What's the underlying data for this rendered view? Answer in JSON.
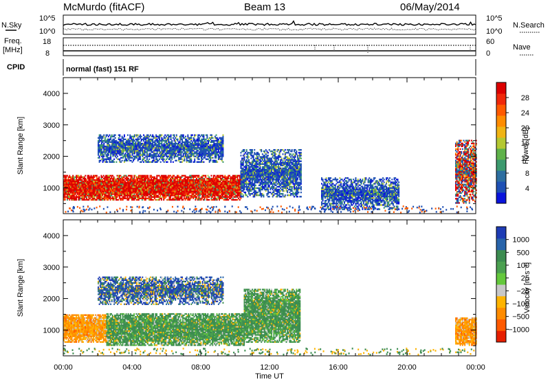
{
  "header": {
    "station": "McMurdo (fitACF)",
    "beam": "Beam 13",
    "date": "06/May/2014"
  },
  "noise_panel": {
    "left_label": "N.Sky",
    "right_label": "N.Search",
    "left_top": "10^5",
    "left_bottom": "10^0",
    "right_top": "10^5",
    "right_bottom": "10^0"
  },
  "freq_panel": {
    "left_label_1": "Freq.",
    "left_label_2": "[MHz]",
    "left_top": "18",
    "left_bottom": "8",
    "right_top": "60",
    "right_bottom": "0",
    "right_label": "Nave"
  },
  "cpid_panel": {
    "label": "CPID",
    "mode_text": "normal (fast) 151 RF"
  },
  "x_axis": {
    "title": "Time UT",
    "ticks": [
      "00:00",
      "04:00",
      "08:00",
      "12:00",
      "16:00",
      "20:00",
      "00:00"
    ]
  },
  "chart_data": [
    {
      "type": "heatmap",
      "parameter": "Power",
      "ylabel": "Slant Range [km]",
      "yticks": [
        "1000",
        "2000",
        "3000",
        "4000"
      ],
      "ylim": [
        180,
        4500
      ],
      "xlim_hours": [
        0,
        24
      ],
      "colorbar": {
        "title": "Power [dB]",
        "ticks": [
          "4",
          "8",
          "12",
          "16",
          "20",
          "24",
          "28"
        ],
        "colors": [
          "#0a14dc",
          "#1e50b4",
          "#2d6ea0",
          "#3c9a6e",
          "#5fb24a",
          "#b4c832",
          "#f0b414",
          "#ff8c00",
          "#ff5a00",
          "#f0280a",
          "#dc0000"
        ]
      },
      "echo_regions": [
        {
          "t_start": 0.0,
          "t_end": 10.3,
          "range_min": 600,
          "range_max": 1400,
          "level": "high"
        },
        {
          "t_start": 10.3,
          "t_end": 13.8,
          "range_min": 700,
          "range_max": 2200,
          "level": "low"
        },
        {
          "t_start": 2.0,
          "t_end": 9.3,
          "range_min": 1800,
          "range_max": 2700,
          "level": "low"
        },
        {
          "t_start": 15.0,
          "t_end": 19.5,
          "range_min": 300,
          "range_max": 1300,
          "level": "low"
        },
        {
          "t_start": 22.8,
          "t_end": 24.0,
          "range_min": 500,
          "range_max": 2500,
          "level": "medium"
        }
      ]
    },
    {
      "type": "heatmap",
      "parameter": "Velocity",
      "ylabel": "Slant Range [km]",
      "yticks": [
        "1000",
        "2000",
        "3000",
        "4000"
      ],
      "ylim": [
        180,
        4500
      ],
      "xlim_hours": [
        0,
        24
      ],
      "colorbar": {
        "title": "Velocity [m s⁻¹]",
        "ticks": [
          "1000",
          "500",
          "100",
          "25",
          "−25",
          "−100",
          "−500",
          "−1000"
        ],
        "colors": [
          "#1e3cb4",
          "#2864aa",
          "#3c8c50",
          "#4ba050",
          "#64c83c",
          "#c8c8c8",
          "#ffb400",
          "#ff8c00",
          "#ff5a00",
          "#e61e00"
        ]
      },
      "echo_regions": [
        {
          "t_start": 0.0,
          "t_end": 2.5,
          "range_min": 600,
          "range_max": 1500,
          "level": "negative"
        },
        {
          "t_start": 2.5,
          "t_end": 10.5,
          "range_min": 500,
          "range_max": 1500,
          "level": "positive"
        },
        {
          "t_start": 10.5,
          "t_end": 13.8,
          "range_min": 600,
          "range_max": 2300,
          "level": "positive"
        },
        {
          "t_start": 2.0,
          "t_end": 9.3,
          "range_min": 1800,
          "range_max": 2700,
          "level": "mixed"
        },
        {
          "t_start": 22.8,
          "t_end": 24.0,
          "range_min": 500,
          "range_max": 1400,
          "level": "negative"
        }
      ]
    }
  ]
}
